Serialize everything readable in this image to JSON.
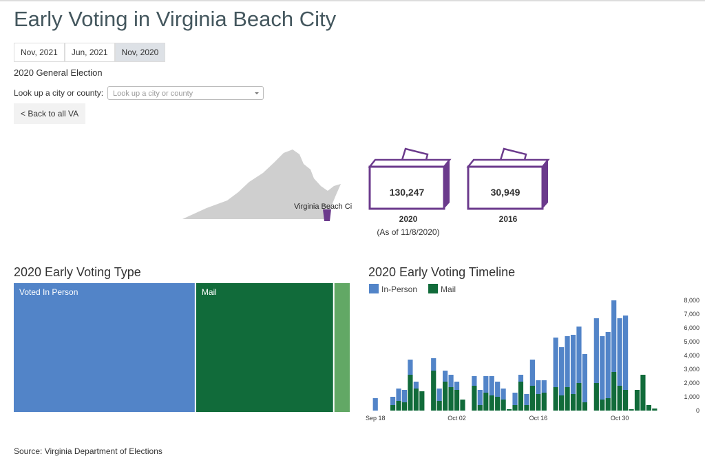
{
  "header": {
    "title": "Early Voting in Virginia Beach City"
  },
  "tabs": [
    "Nov, 2021",
    "Jun, 2021",
    "Nov, 2020"
  ],
  "active_tab": 2,
  "election": "2020 General Election",
  "lookup": {
    "label": "Look up a city or county:",
    "placeholder": "Look up a city or county"
  },
  "back_button": "< Back to all VA",
  "map": {
    "label": "Virginia Beach Ci"
  },
  "ballots": [
    {
      "count": "130,247",
      "year": "2020",
      "note": "(As of 11/8/2020)"
    },
    {
      "count": "30,949",
      "year": "2016"
    }
  ],
  "chart_data": [
    {
      "type": "treemap",
      "title": "2020 Early Voting Type",
      "categories": [
        "Voted In Person",
        "Mail",
        null
      ],
      "values": [
        70400,
        53400,
        6447
      ],
      "colors": [
        "#5284c8",
        "#116b3a",
        "#62a865"
      ]
    },
    {
      "type": "bar",
      "stacked": true,
      "title": "2020 Early Voting Timeline",
      "categories": [
        "Sep 18",
        null,
        null,
        null,
        null,
        null,
        null,
        null,
        null,
        null,
        null,
        null,
        null,
        null,
        "Oct 02",
        null,
        null,
        null,
        null,
        null,
        null,
        null,
        null,
        null,
        null,
        null,
        null,
        null,
        "Oct 16",
        null,
        null,
        null,
        null,
        null,
        null,
        null,
        null,
        null,
        null,
        null,
        null,
        null,
        "Oct 30",
        null,
        null,
        null,
        null,
        null,
        null
      ],
      "series": [
        {
          "name": "In-Person",
          "color": "#5284c8",
          "values": [
            900,
            0,
            0,
            600,
            900,
            900,
            1100,
            500,
            0,
            0,
            900,
            900,
            800,
            900,
            600,
            0,
            0,
            700,
            1100,
            1200,
            1400,
            1100,
            800,
            0,
            900,
            500,
            800,
            1900,
            1000,
            900,
            0,
            3600,
            3500,
            3700,
            4300,
            4100,
            3500,
            0,
            4700,
            4600,
            4800,
            5200,
            4900,
            5400,
            0,
            0,
            0,
            0,
            0
          ]
        },
        {
          "name": "Mail",
          "color": "#116b3a",
          "values": [
            0,
            0,
            0,
            400,
            700,
            600,
            2600,
            1600,
            1400,
            0,
            2900,
            700,
            2100,
            1700,
            1500,
            800,
            0,
            1800,
            400,
            1300,
            1100,
            1000,
            800,
            100,
            400,
            2100,
            400,
            1800,
            1200,
            1300,
            0,
            1700,
            1100,
            1700,
            1200,
            2000,
            600,
            0,
            2000,
            800,
            900,
            2800,
            1800,
            1500,
            100,
            1500,
            2600,
            400,
            150
          ]
        }
      ],
      "ylim": [
        0,
        8000
      ],
      "yticks": [
        0,
        {
          "value": 1000,
          "label": "1,000"
        },
        {
          "value": 2000,
          "label": "2,000"
        },
        {
          "value": 3000,
          "label": "3,000"
        },
        {
          "value": 4000,
          "label": "4,000"
        },
        {
          "value": 5000,
          "label": "5,000"
        },
        {
          "value": 6000,
          "label": "6,000"
        },
        {
          "value": 7000,
          "label": "7,000"
        },
        {
          "value": 8000,
          "label": "8,000"
        }
      ],
      "legend": "top-left"
    }
  ],
  "source": "Source: Virginia Department of Elections"
}
